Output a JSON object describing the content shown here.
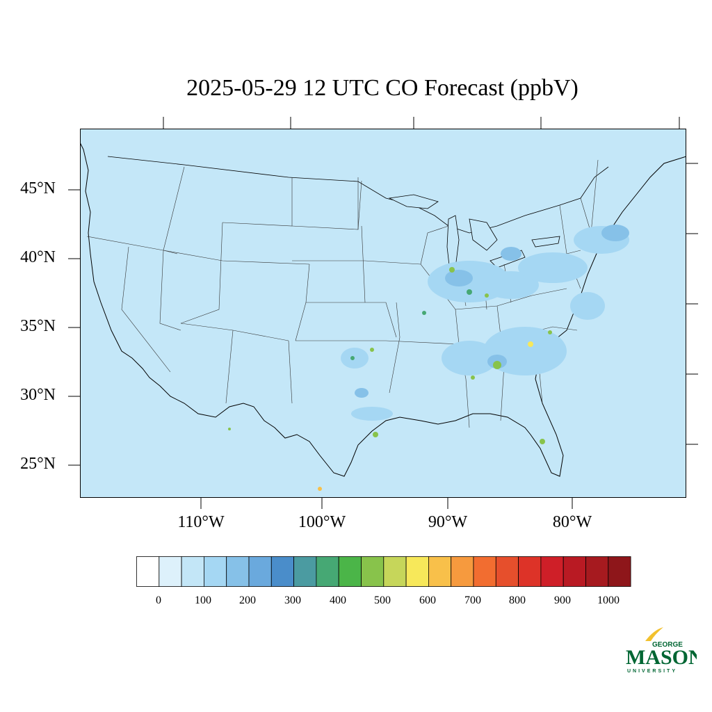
{
  "title": "2025-05-29 12 UTC CO Forecast (ppbV)",
  "map": {
    "ocean_color": "#c4e7f8",
    "lat_labels": [
      "45°N",
      "40°N",
      "35°N",
      "30°N",
      "25°N"
    ],
    "lon_labels": [
      "110°W",
      "100°W",
      "90°W",
      "80°W"
    ]
  },
  "colorbar": {
    "colors": [
      "#ffffff",
      "#ddf1fb",
      "#c3e6f7",
      "#a5d7f3",
      "#86c1e8",
      "#6aa9dd",
      "#4a8dca",
      "#4b9ba1",
      "#46a874",
      "#4bb548",
      "#88c34b",
      "#c6d65a",
      "#f7e85a",
      "#f8c04a",
      "#f69a3e",
      "#f26d30",
      "#e64f2c",
      "#dd3328",
      "#cf1f28",
      "#b91a23",
      "#a61a1f",
      "#8e161a"
    ],
    "labels": [
      "0",
      "100",
      "200",
      "300",
      "400",
      "500",
      "600",
      "700",
      "800",
      "900",
      "1000"
    ]
  },
  "logo": {
    "top": "GEORGE",
    "main": "MASON",
    "bottom": "UNIVERSITY",
    "green": "#006633",
    "gold": "#f2c12e"
  }
}
